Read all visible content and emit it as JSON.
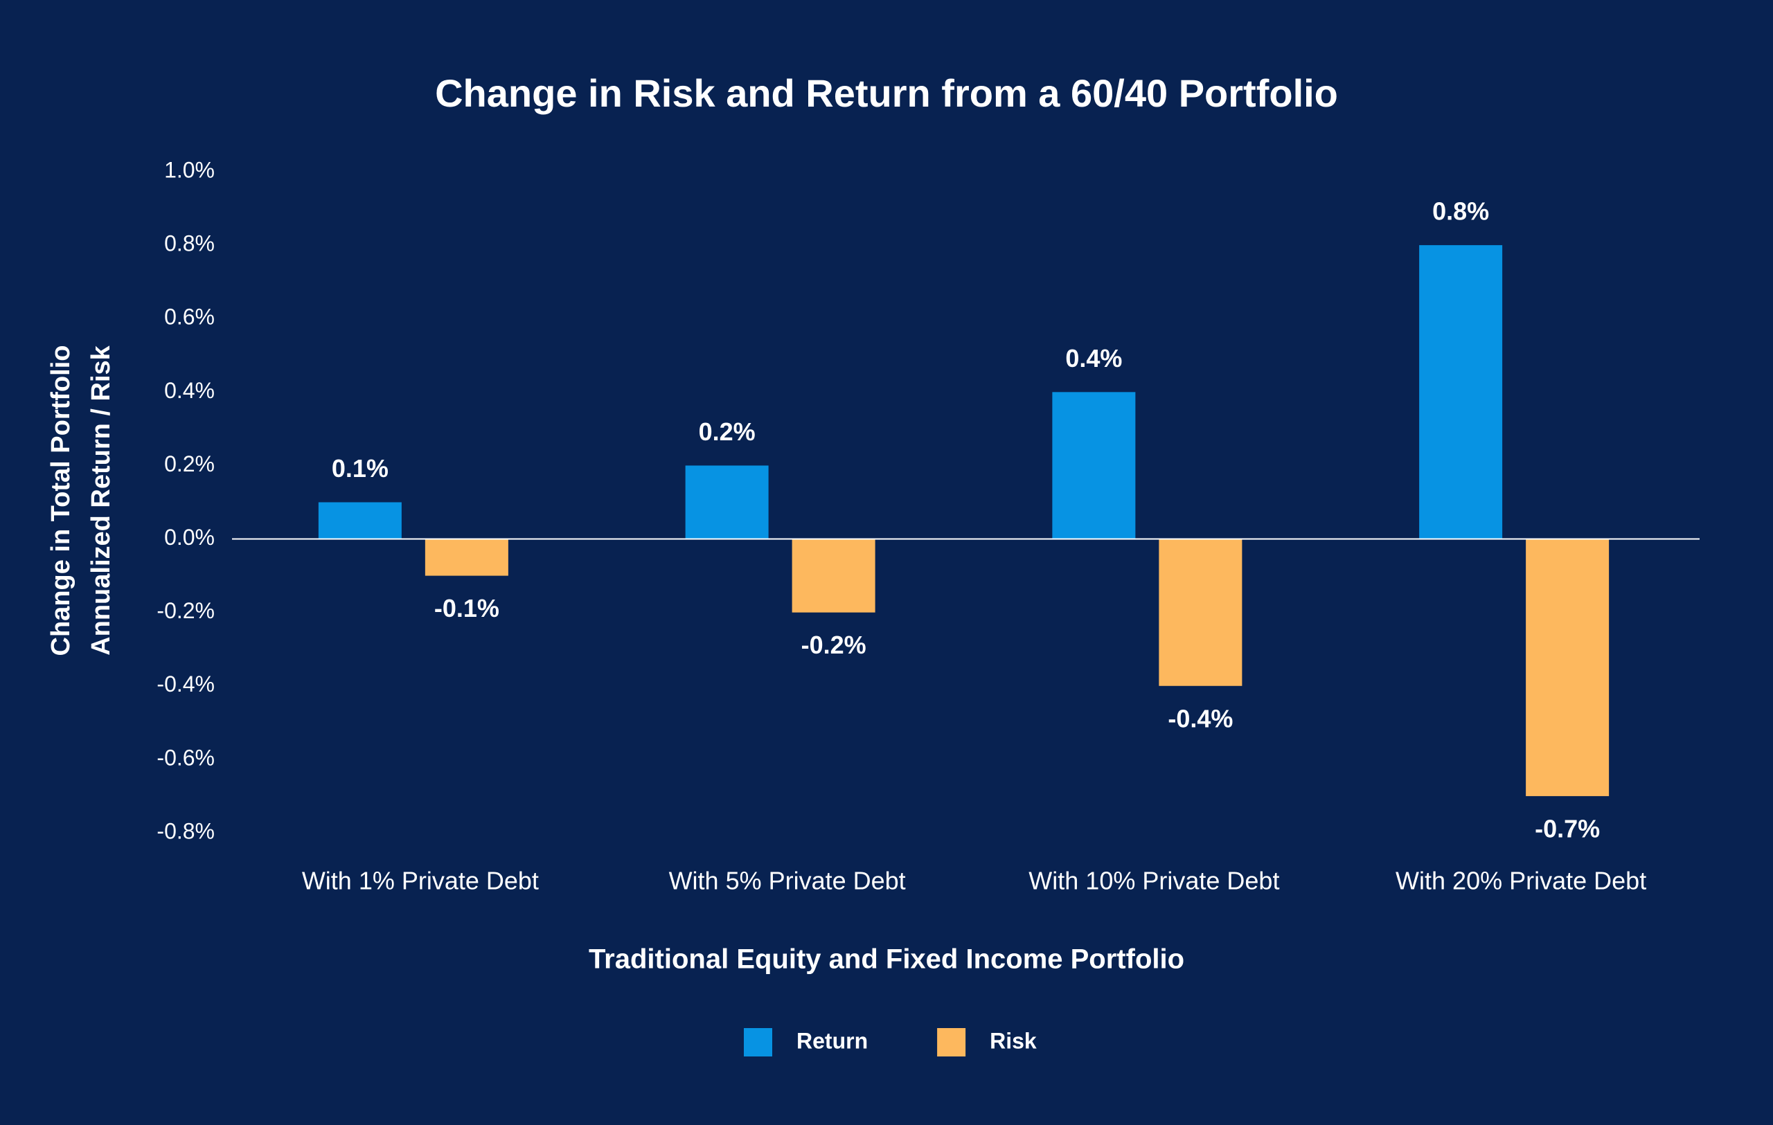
{
  "chart_data": {
    "type": "bar",
    "title": "Change in Risk and Return from a 60/40 Portfolio",
    "y_label": [
      "Change in Total Portfolio",
      "Annualized Return / Risk"
    ],
    "x_label": "Traditional Equity and Fixed Income Portfolio",
    "categories": [
      "With 1% Private Debt",
      "With 5% Private Debt",
      "With 10% Private Debt",
      "With 20% Private Debt"
    ],
    "series": [
      {
        "name": "Return",
        "color": "#0793e3",
        "values": [
          0.1,
          0.2,
          0.4,
          0.8
        ],
        "value_labels": [
          "0.1%",
          "0.2%",
          "0.4%",
          "0.8%"
        ]
      },
      {
        "name": "Risk",
        "color": "#fdb85e",
        "values": [
          -0.1,
          -0.2,
          -0.4,
          -0.7
        ],
        "value_labels": [
          "-0.1%",
          "-0.2%",
          "-0.4%",
          "-0.7%"
        ]
      }
    ],
    "ylim": [
      -0.8,
      1.0
    ],
    "yticks": [
      {
        "value": 1.0,
        "label": "1.0%"
      },
      {
        "value": 0.8,
        "label": "0.8%"
      },
      {
        "value": 0.6,
        "label": "0.6%"
      },
      {
        "value": 0.4,
        "label": "0.4%"
      },
      {
        "value": 0.2,
        "label": "0.2%"
      },
      {
        "value": 0.0,
        "label": "0.0%"
      },
      {
        "value": -0.2,
        "label": "-0.2%"
      },
      {
        "value": -0.4,
        "label": "-0.4%"
      },
      {
        "value": -0.6,
        "label": "-0.6%"
      },
      {
        "value": -0.8,
        "label": "-0.8%"
      }
    ],
    "grid": false,
    "legend": "bottom"
  }
}
